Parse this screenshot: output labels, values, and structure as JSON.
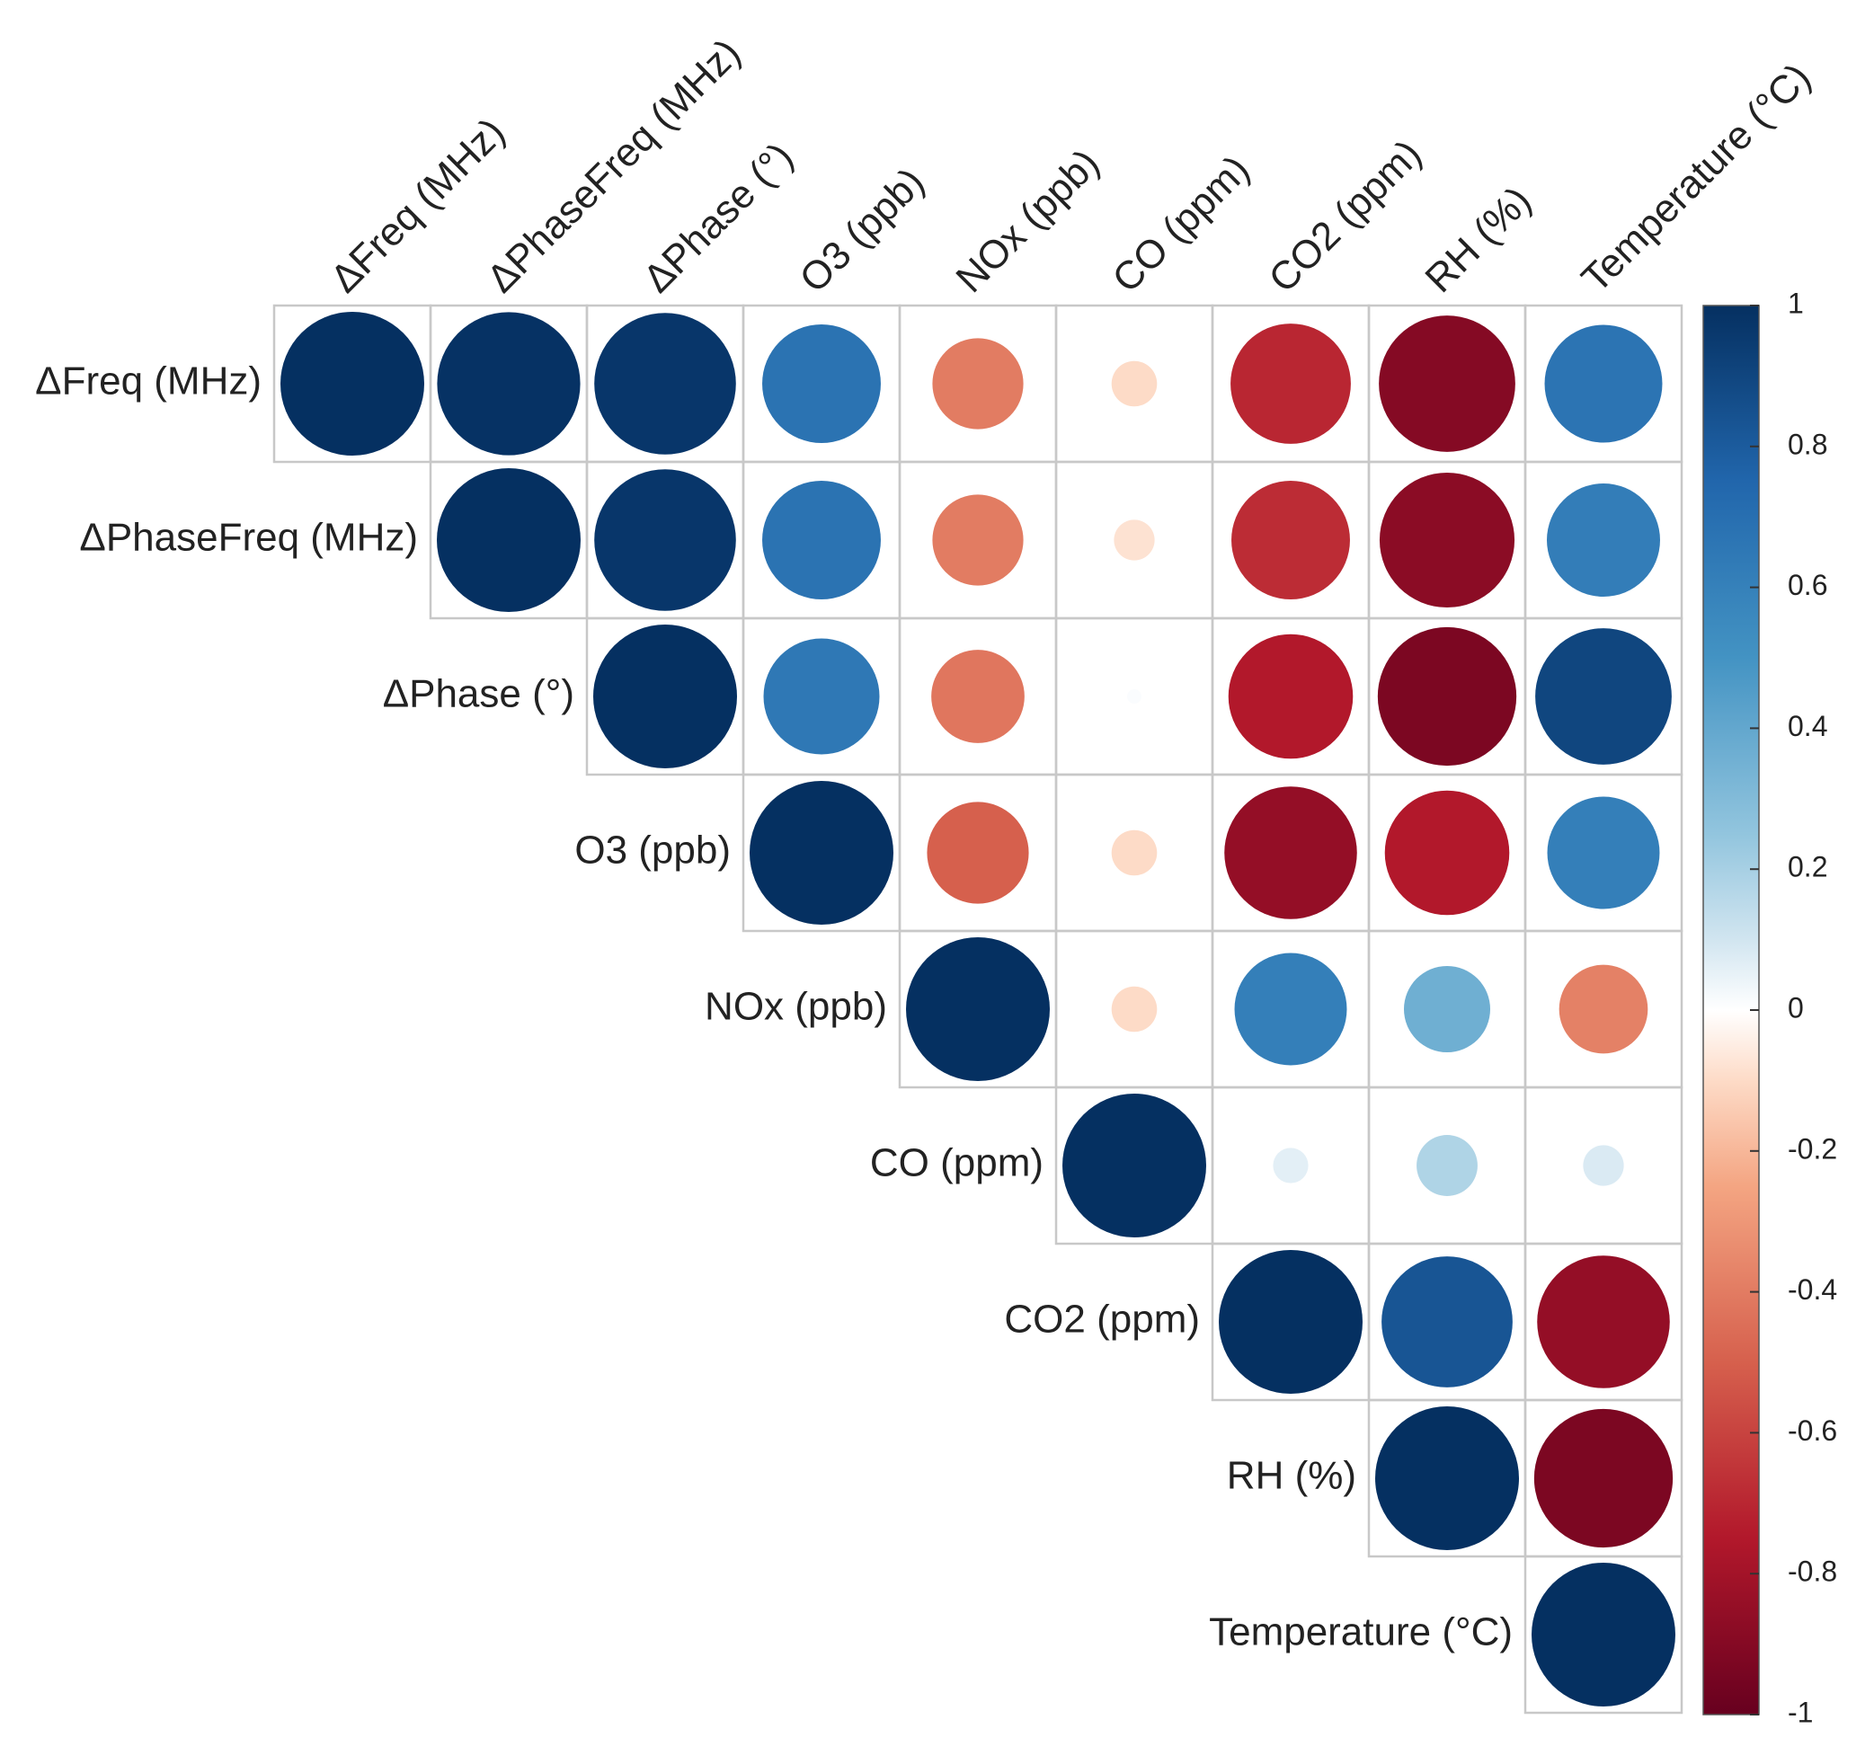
{
  "chart_data": {
    "type": "heatmap",
    "subtype": "correlation-circles-upper",
    "variables": [
      "ΔFreq (MHz)",
      "ΔPhaseFreq (MHz)",
      "ΔPhase (°)",
      "O3 (ppb)",
      "NOx (ppb)",
      "CO (ppm)",
      "CO2 (ppm)",
      "RH (%)",
      "Temperature (°C)"
    ],
    "matrix": [
      [
        1.0,
        0.99,
        0.97,
        0.68,
        -0.4,
        -0.1,
        -0.7,
        -0.9,
        0.67
      ],
      [
        null,
        1.0,
        0.97,
        0.68,
        -0.4,
        -0.08,
        -0.68,
        -0.88,
        0.62
      ],
      [
        null,
        null,
        1.0,
        0.65,
        -0.42,
        0.01,
        -0.75,
        -0.93,
        0.9
      ],
      [
        null,
        null,
        null,
        1.0,
        -0.5,
        -0.1,
        -0.85,
        -0.75,
        0.61
      ],
      [
        null,
        null,
        null,
        null,
        1.0,
        -0.1,
        0.61,
        0.36,
        -0.38
      ],
      [
        null,
        null,
        null,
        null,
        null,
        1.0,
        0.06,
        0.18,
        0.08
      ],
      [
        null,
        null,
        null,
        null,
        null,
        null,
        1.0,
        0.83,
        -0.85
      ],
      [
        null,
        null,
        null,
        null,
        null,
        null,
        null,
        1.0,
        -0.93
      ],
      [
        null,
        null,
        null,
        null,
        null,
        null,
        null,
        null,
        1.0
      ]
    ],
    "colorbar": {
      "range": [
        -1,
        1
      ],
      "ticks": [
        "1",
        "0.8",
        "0.6",
        "0.4",
        "0.2",
        "0",
        "-0.2",
        "-0.4",
        "-0.6",
        "-0.8",
        "-1"
      ],
      "tick_values": [
        1,
        0.8,
        0.6,
        0.4,
        0.2,
        0,
        -0.2,
        -0.4,
        -0.6,
        -0.8,
        -1
      ],
      "stops": [
        {
          "v": -1.0,
          "color": "#67001F"
        },
        {
          "v": -0.75,
          "color": "#B2182B"
        },
        {
          "v": -0.5,
          "color": "#D6604D"
        },
        {
          "v": -0.25,
          "color": "#F4A582"
        },
        {
          "v": -0.1,
          "color": "#FDDBC7"
        },
        {
          "v": 0.0,
          "color": "#FFFFFF"
        },
        {
          "v": 0.1,
          "color": "#D1E5F0"
        },
        {
          "v": 0.25,
          "color": "#92C5DE"
        },
        {
          "v": 0.5,
          "color": "#4393C3"
        },
        {
          "v": 0.75,
          "color": "#2166AC"
        },
        {
          "v": 1.0,
          "color": "#053061"
        }
      ]
    },
    "legend_position": "right",
    "grid": true
  }
}
